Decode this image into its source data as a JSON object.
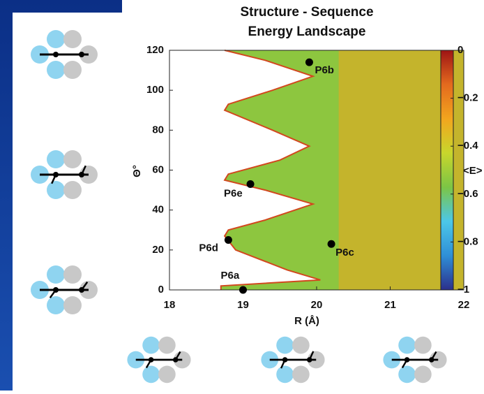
{
  "chart_data": {
    "type": "contour",
    "title": [
      "Structure - Sequence",
      "Energy Landscape"
    ],
    "xlabel": "R (Å)",
    "ylabel": "Θ°",
    "xlim": [
      18,
      22
    ],
    "xticks": [
      18,
      19,
      20,
      21,
      22
    ],
    "ylim": [
      0,
      120
    ],
    "yticks": [
      0,
      20,
      40,
      60,
      80,
      100,
      120
    ],
    "boundary": {
      "theta": [
        0,
        2,
        5,
        10,
        20,
        27,
        30,
        35,
        43,
        50,
        55,
        58,
        65,
        72,
        80,
        90,
        93,
        100,
        107,
        115,
        120
      ],
      "R": [
        18.7,
        18.7,
        20.05,
        19.6,
        18.9,
        18.75,
        18.8,
        19.3,
        19.95,
        19.3,
        18.75,
        18.8,
        19.5,
        19.9,
        19.4,
        18.75,
        18.8,
        19.4,
        19.95,
        19.3,
        18.75
      ],
      "color": "#8dc63f",
      "edge_color": "#d2481e"
    },
    "points": [
      {
        "label": "P6a",
        "R": 19.0,
        "theta": 0
      },
      {
        "label": "P6b",
        "R": 19.9,
        "theta": 114
      },
      {
        "label": "P6c",
        "R": 20.2,
        "theta": 23
      },
      {
        "label": "P6d",
        "R": 18.8,
        "theta": 25
      },
      {
        "label": "P6e",
        "R": 19.1,
        "theta": 53
      }
    ],
    "colorbar": {
      "label": "<E>",
      "lim": [
        -1,
        0
      ],
      "ticks": [
        {
          "value": 0,
          "label": "0"
        },
        {
          "value": -0.2,
          "label": "−0.2"
        },
        {
          "value": -0.4,
          "label": "−0.4"
        },
        {
          "value": -0.6,
          "label": "−0.6"
        },
        {
          "value": -0.8,
          "label": "−0.8"
        },
        {
          "value": -1,
          "label": "−1"
        }
      ],
      "colors": [
        "#2b2f8c",
        "#2f8fd6",
        "#4cc7e8",
        "#7cc545",
        "#c8d62c",
        "#f2a51e",
        "#e46a1e",
        "#9e1414"
      ]
    }
  }
}
